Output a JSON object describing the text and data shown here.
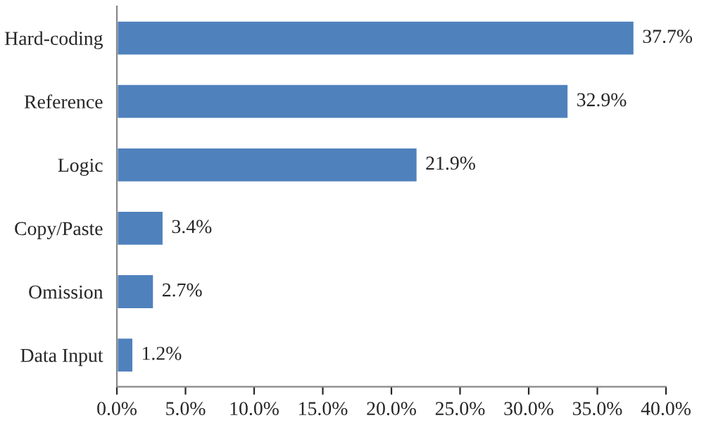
{
  "chart_data": {
    "type": "bar",
    "orientation": "horizontal",
    "categories": [
      "Hard-coding",
      "Reference",
      "Logic",
      "Copy/Paste",
      "Omission",
      "Data Input"
    ],
    "values": [
      37.7,
      32.9,
      21.9,
      3.4,
      2.7,
      1.2
    ],
    "color": "#4f81bd",
    "value_labels": [
      "37.7%",
      "32.9%",
      "21.9%",
      "3.4%",
      "2.7%",
      "1.2%"
    ],
    "xlim": [
      0,
      40
    ],
    "xticks": [
      {
        "value": 0,
        "label": "0.0%"
      },
      {
        "value": 5,
        "label": "5.0%"
      },
      {
        "value": 10,
        "label": "10.0%"
      },
      {
        "value": 15,
        "label": "15.0%"
      },
      {
        "value": 20,
        "label": "20.0%"
      },
      {
        "value": 25,
        "label": "25.0%"
      },
      {
        "value": 30,
        "label": "30.0%"
      },
      {
        "value": 35,
        "label": "35.0%"
      },
      {
        "value": 40,
        "label": "40.0%"
      }
    ],
    "grid": false,
    "legend": false
  }
}
